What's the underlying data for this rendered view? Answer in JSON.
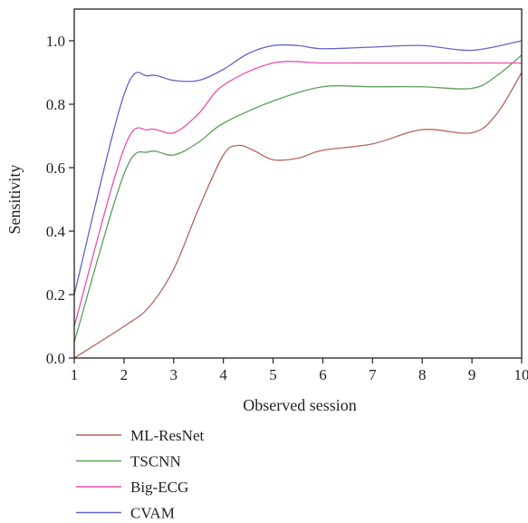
{
  "chart_data": {
    "type": "line",
    "xlabel": "Observed session",
    "ylabel": "Sensitivity",
    "x": [
      1,
      2,
      3,
      4,
      5,
      6,
      7,
      8,
      9,
      10
    ],
    "xlim": [
      1,
      10
    ],
    "ylim": [
      0,
      1.1
    ],
    "x_ticks": [
      "1",
      "2",
      "3",
      "4",
      "5",
      "6",
      "7",
      "8",
      "9",
      "10"
    ],
    "y_ticks": [
      "0.0",
      "0.2",
      "0.4",
      "0.6",
      "0.8",
      "1.0"
    ],
    "grid": false,
    "legend_position": "bottom-left",
    "series": [
      {
        "name": "ML-ResNet",
        "color": "#b5655a",
        "points": [
          [
            1,
            0.0
          ],
          [
            2,
            0.1
          ],
          [
            2.5,
            0.16
          ],
          [
            3,
            0.28
          ],
          [
            3.5,
            0.47
          ],
          [
            4,
            0.64
          ],
          [
            4.3,
            0.67
          ],
          [
            4.6,
            0.655
          ],
          [
            5,
            0.625
          ],
          [
            5.5,
            0.63
          ],
          [
            6,
            0.655
          ],
          [
            7,
            0.675
          ],
          [
            8,
            0.72
          ],
          [
            9,
            0.71
          ],
          [
            9.5,
            0.77
          ],
          [
            10,
            0.9
          ]
        ]
      },
      {
        "name": "TSCNN",
        "color": "#5aa05a",
        "points": [
          [
            1,
            0.05
          ],
          [
            2,
            0.58
          ],
          [
            2.5,
            0.65
          ],
          [
            3,
            0.64
          ],
          [
            3.5,
            0.68
          ],
          [
            4,
            0.74
          ],
          [
            5,
            0.81
          ],
          [
            6,
            0.855
          ],
          [
            7,
            0.855
          ],
          [
            8,
            0.855
          ],
          [
            9,
            0.85
          ],
          [
            9.5,
            0.89
          ],
          [
            10,
            0.955
          ]
        ]
      },
      {
        "name": "Big-ECG",
        "color": "#ee4fae",
        "points": [
          [
            1,
            0.1
          ],
          [
            2,
            0.66
          ],
          [
            2.5,
            0.72
          ],
          [
            3,
            0.71
          ],
          [
            3.5,
            0.77
          ],
          [
            4,
            0.86
          ],
          [
            5,
            0.93
          ],
          [
            6,
            0.93
          ],
          [
            7,
            0.93
          ],
          [
            8,
            0.93
          ],
          [
            9,
            0.93
          ],
          [
            10,
            0.93
          ]
        ]
      },
      {
        "name": "CVAM",
        "color": "#6264c8",
        "points": [
          [
            1,
            0.2
          ],
          [
            2,
            0.83
          ],
          [
            2.5,
            0.89
          ],
          [
            3,
            0.875
          ],
          [
            3.5,
            0.875
          ],
          [
            4,
            0.91
          ],
          [
            4.5,
            0.96
          ],
          [
            5,
            0.985
          ],
          [
            5.5,
            0.985
          ],
          [
            6,
            0.975
          ],
          [
            7,
            0.98
          ],
          [
            8,
            0.985
          ],
          [
            9,
            0.97
          ],
          [
            10,
            1.0
          ]
        ]
      }
    ]
  }
}
